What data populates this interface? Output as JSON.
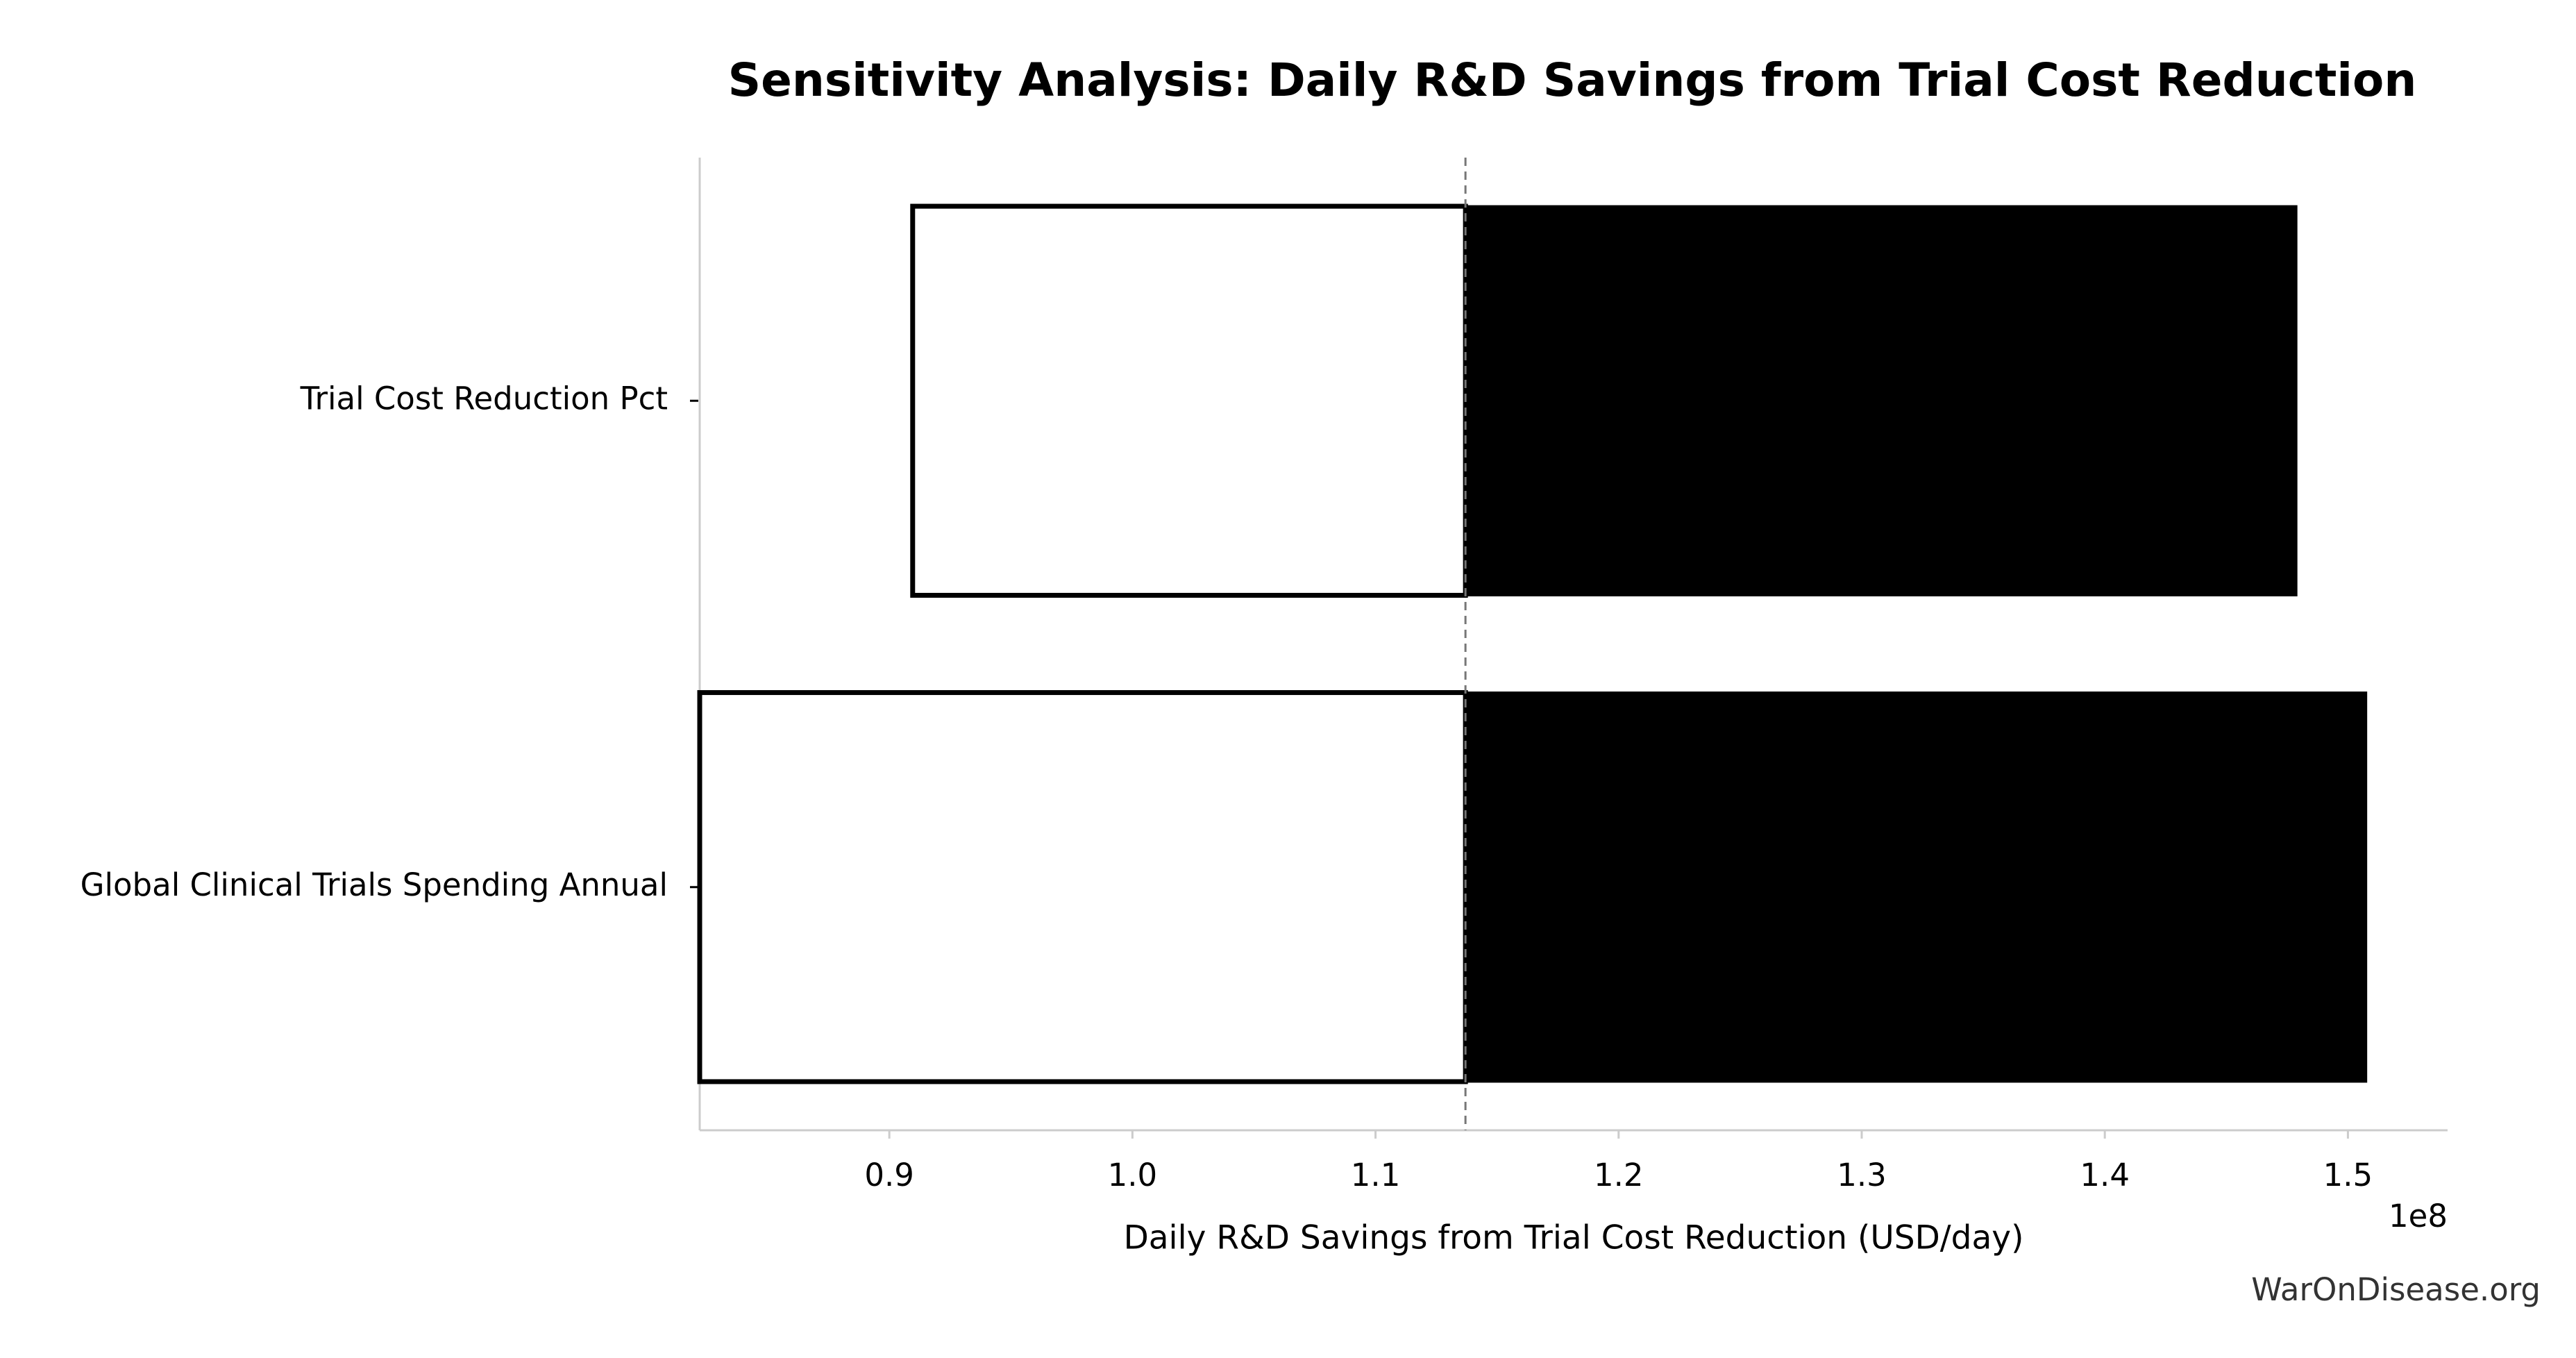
{
  "chart_data": {
    "type": "tornado",
    "title": "Sensitivity Analysis: Daily R&D Savings from Trial Cost Reduction",
    "xlabel": "Daily R&D Savings from Trial Cost Reduction (USD/day)",
    "x_offset_label": "1e8",
    "watermark": "WarOnDisease.org",
    "categories": [
      "Trial Cost Reduction Pct",
      "Global Clinical Trials Spending Annual"
    ],
    "baseline": 113700000,
    "low": [
      90960000,
      82200000
    ],
    "high": [
      147880000,
      150750000
    ],
    "low_color": "#ffffff",
    "high_color": "#000000",
    "xlim": [
      82200000,
      154100000
    ],
    "xticks": [
      {
        "value": 90000000,
        "label": "0.9"
      },
      {
        "value": 100000000,
        "label": "1.0"
      },
      {
        "value": 110000000,
        "label": "1.1"
      },
      {
        "value": 120000000,
        "label": "1.2"
      },
      {
        "value": 130000000,
        "label": "1.3"
      },
      {
        "value": 140000000,
        "label": "1.4"
      },
      {
        "value": 150000000,
        "label": "1.5"
      }
    ]
  }
}
